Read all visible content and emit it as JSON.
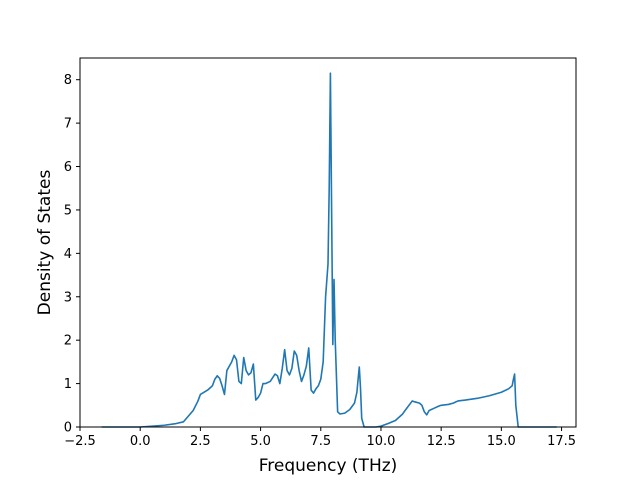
{
  "chart_data": {
    "type": "line",
    "title": "",
    "xlabel": "Frequency (THz)",
    "ylabel": "Density of States",
    "xlim": [
      -2.5,
      18.1
    ],
    "ylim": [
      0,
      8.5
    ],
    "xticks": [
      -2.5,
      0.0,
      2.5,
      5.0,
      7.5,
      10.0,
      12.5,
      15.0,
      17.5
    ],
    "xtick_labels": [
      "−2.5",
      "0.0",
      "2.5",
      "5.0",
      "7.5",
      "10.0",
      "12.5",
      "15.0",
      "17.5"
    ],
    "yticks": [
      0,
      1,
      2,
      3,
      4,
      5,
      6,
      7,
      8
    ],
    "ytick_labels": [
      "0",
      "1",
      "2",
      "3",
      "4",
      "5",
      "6",
      "7",
      "8"
    ],
    "grid": false,
    "colors": {
      "line": "#1f77b4",
      "axes": "#000000",
      "background": "#ffffff"
    },
    "series": [
      {
        "x": [
          -1.6,
          -1.0,
          0.0,
          0.5,
          1.0,
          1.5,
          1.8,
          2.0,
          2.2,
          2.4,
          2.5,
          2.8,
          3.0,
          3.1,
          3.2,
          3.3,
          3.4,
          3.5,
          3.6,
          3.8,
          3.9,
          4.0,
          4.1,
          4.2,
          4.3,
          4.4,
          4.5,
          4.6,
          4.7,
          4.8,
          4.9,
          5.0,
          5.1,
          5.2,
          5.4,
          5.6,
          5.7,
          5.8,
          5.9,
          6.0,
          6.1,
          6.2,
          6.3,
          6.4,
          6.5,
          6.6,
          6.7,
          6.8,
          6.9,
          7.0,
          7.1,
          7.2,
          7.3,
          7.4,
          7.5,
          7.6,
          7.7,
          7.8,
          7.85,
          7.9,
          7.95,
          8.0,
          8.05,
          8.1,
          8.2,
          8.3,
          8.5,
          8.7,
          8.9,
          9.0,
          9.05,
          9.1,
          9.15,
          9.2,
          9.3,
          9.5,
          9.8,
          10.0,
          10.3,
          10.6,
          10.9,
          11.0,
          11.3,
          11.4,
          11.6,
          11.7,
          11.8,
          11.9,
          12.0,
          12.2,
          12.4,
          12.5,
          12.8,
          13.0,
          13.2,
          13.5,
          14.0,
          14.5,
          15.0,
          15.3,
          15.45,
          15.5,
          15.55,
          15.6,
          15.7,
          16.0,
          17.3
        ],
        "y": [
          0.0,
          0.0,
          0.0,
          0.02,
          0.04,
          0.08,
          0.12,
          0.25,
          0.38,
          0.6,
          0.75,
          0.85,
          0.95,
          1.1,
          1.18,
          1.12,
          0.95,
          0.75,
          1.3,
          1.5,
          1.65,
          1.55,
          1.05,
          1.0,
          1.6,
          1.3,
          1.2,
          1.25,
          1.45,
          0.62,
          0.68,
          0.78,
          1.0,
          1.0,
          1.05,
          1.22,
          1.18,
          1.0,
          1.35,
          1.78,
          1.3,
          1.2,
          1.35,
          1.75,
          1.65,
          1.3,
          1.05,
          1.2,
          1.4,
          1.82,
          0.85,
          0.78,
          0.88,
          0.95,
          1.1,
          1.5,
          3.0,
          3.75,
          5.5,
          8.15,
          5.0,
          1.9,
          3.4,
          2.0,
          0.35,
          0.3,
          0.32,
          0.4,
          0.55,
          0.8,
          1.1,
          1.38,
          0.9,
          0.2,
          0.0,
          0.0,
          0.0,
          0.02,
          0.08,
          0.15,
          0.3,
          0.38,
          0.6,
          0.58,
          0.55,
          0.5,
          0.35,
          0.28,
          0.38,
          0.43,
          0.48,
          0.5,
          0.52,
          0.55,
          0.6,
          0.62,
          0.66,
          0.72,
          0.8,
          0.88,
          0.95,
          1.1,
          1.22,
          0.5,
          0.0,
          0.0,
          0.0
        ]
      }
    ]
  }
}
